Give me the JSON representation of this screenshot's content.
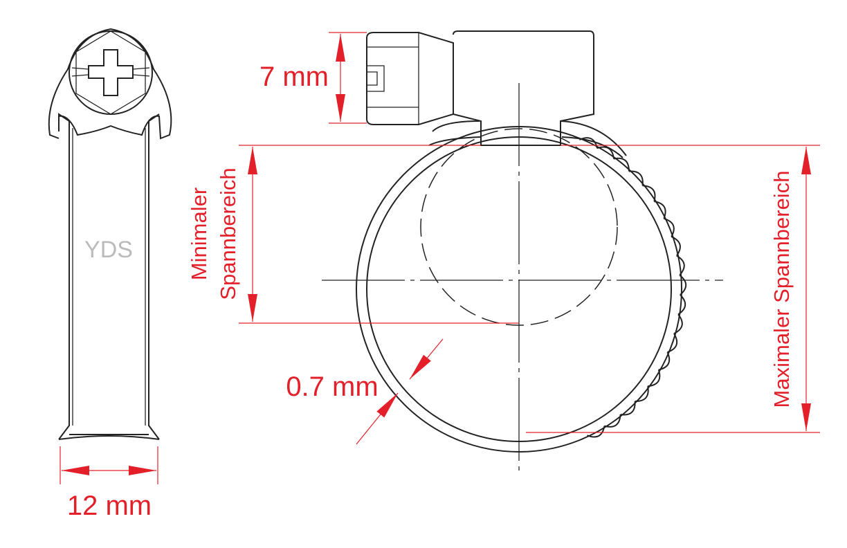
{
  "labels": {
    "screw_height": "7 mm",
    "width": "12 mm",
    "thickness": "0.7 mm",
    "brand": "YDS",
    "min_range": [
      "Minimaler",
      "Spannbereich"
    ],
    "max_range": "Maximaler Spannbereich"
  }
}
